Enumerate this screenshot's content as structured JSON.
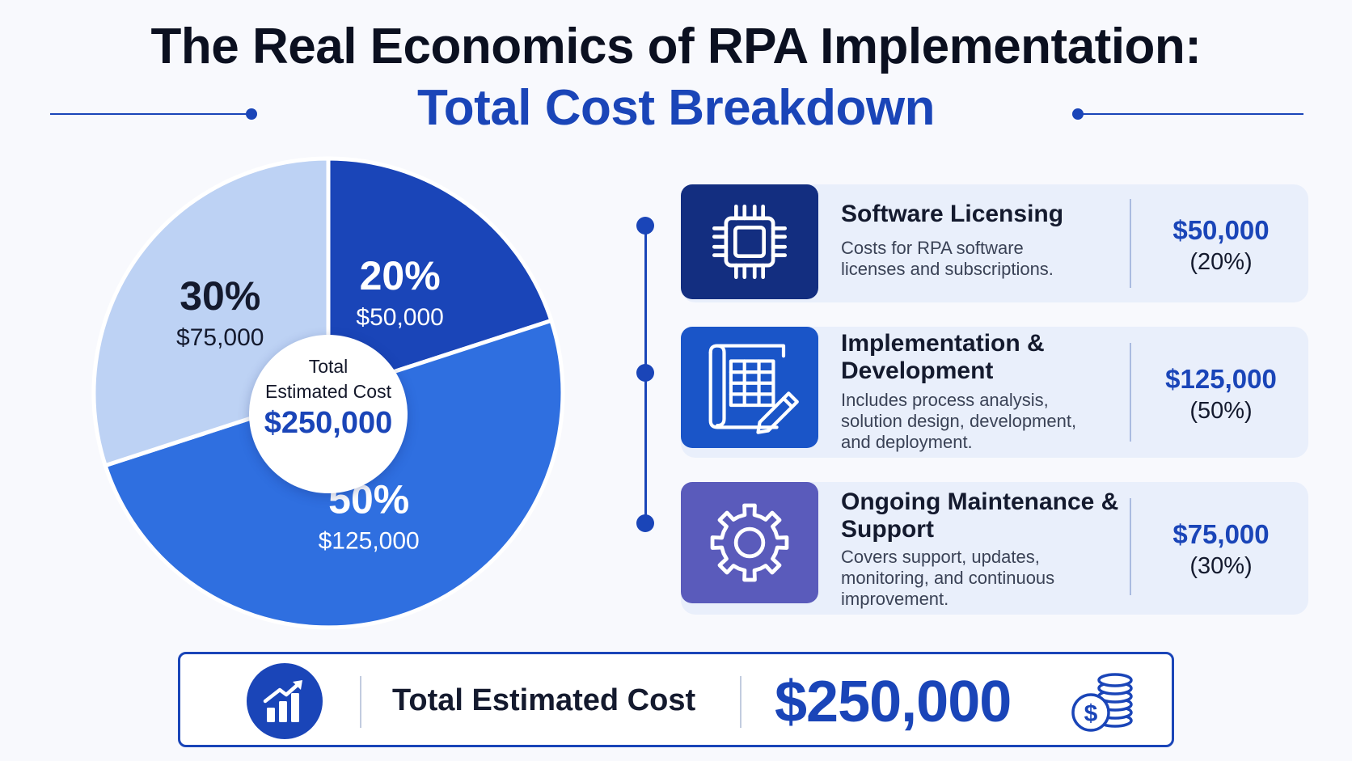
{
  "title": {
    "line1": "The Real Economics of RPA Implementation:",
    "line2": "Total Cost Breakdown"
  },
  "chart_data": {
    "type": "pie",
    "slices": [
      {
        "name": "Software Licensing",
        "percent_label": "20%",
        "value_label": "$50,000",
        "value": 50000,
        "percent": 20,
        "color": "#1a45b8",
        "text_color": "#ffffff"
      },
      {
        "name": "Implementation & Development",
        "percent_label": "50%",
        "value_label": "$125,000",
        "value": 125000,
        "percent": 50,
        "color": "#2f6fe0",
        "text_color": "#ffffff"
      },
      {
        "name": "Ongoing Maintenance & Support",
        "percent_label": "30%",
        "value_label": "$75,000",
        "value": 75000,
        "percent": 30,
        "color": "#bdd2f4",
        "text_color": "#141a2e"
      }
    ],
    "center": {
      "label": "Total\nEstimated Cost",
      "value": "$250,000"
    }
  },
  "cards": [
    {
      "title": "Software Licensing",
      "description": "Costs for RPA software\nlicenses and subscriptions.",
      "value": "$50,000",
      "percent": "(20%)",
      "icon": "chip-icon",
      "icon_bg": "#132e80"
    },
    {
      "title": "Implementation &\nDevelopment",
      "description": "Includes process analysis,\nsolution design, development,\nand deployment.",
      "value": "$125,000",
      "percent": "(50%)",
      "icon": "blueprint-pencil-icon",
      "icon_bg": "#1a55c8"
    },
    {
      "title": "Ongoing Maintenance &\nSupport",
      "description": "Covers support, updates,\nmonitoring, and continuous\nimprovement.",
      "value": "$75,000",
      "percent": "(30%)",
      "icon": "gear-icon",
      "icon_bg": "#5a5bbb"
    }
  ],
  "total": {
    "label": "Total Estimated Cost",
    "value": "$250,000",
    "icon": "growth-chart-icon",
    "coins_icon": "dollar-coins-icon"
  },
  "colors": {
    "primary": "#1a45b8",
    "dark": "#0b1020"
  }
}
